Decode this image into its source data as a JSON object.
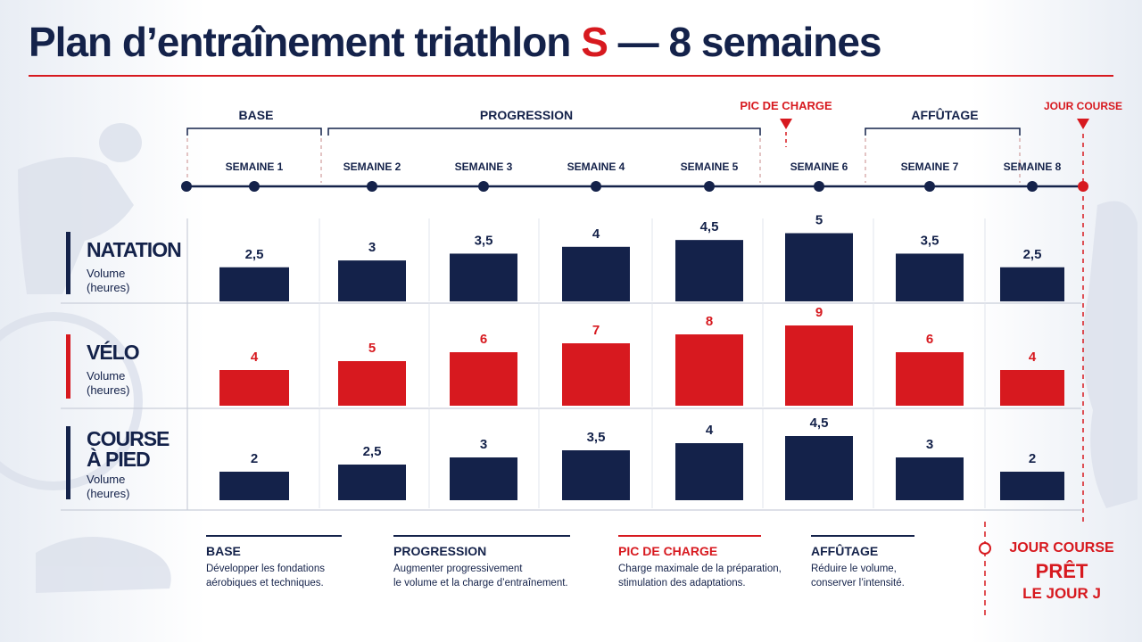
{
  "title": {
    "main": "Plan d’entraînement triathlon",
    "accent": "S",
    "rest": "— 8 semaines"
  },
  "colors": {
    "navy": "#14224a",
    "red": "#d7191f",
    "divider": "#c9ced9"
  },
  "phases": {
    "base": "BASE",
    "progression": "PROGRESSION",
    "peak": "PIC DE CHARGE",
    "taper": "AFFÛTAGE",
    "race": "JOUR COURSE"
  },
  "chart_data": {
    "type": "bar",
    "categories": [
      "SEMAINE 1",
      "SEMAINE 2",
      "SEMAINE 3",
      "SEMAINE 4",
      "SEMAINE 5",
      "SEMAINE 6",
      "SEMAINE 7",
      "SEMAINE 8"
    ],
    "series": [
      {
        "name": "NATATION",
        "unit_label": "Volume (heures)",
        "color": "#14224a",
        "values": [
          2.5,
          3,
          3.5,
          4,
          4.5,
          5,
          3.5,
          2.5
        ],
        "labels": [
          "2,5",
          "3",
          "3,5",
          "4",
          "4,5",
          "5",
          "3,5",
          "2,5"
        ]
      },
      {
        "name": "VÉLO",
        "unit_label": "Volume (heures)",
        "color": "#d7191f",
        "values": [
          4,
          5,
          6,
          7,
          8,
          9,
          6,
          4
        ],
        "labels": [
          "4",
          "5",
          "6",
          "7",
          "8",
          "9",
          "6",
          "4"
        ]
      },
      {
        "name": "COURSE À PIED",
        "unit_label": "Volume (heures)",
        "color": "#14224a",
        "values": [
          2,
          2.5,
          3,
          3.5,
          4,
          4.5,
          3,
          2
        ],
        "labels": [
          "2",
          "2,5",
          "3",
          "3,5",
          "4",
          "4,5",
          "3",
          "2"
        ]
      }
    ]
  },
  "rows": [
    {
      "name_lines": [
        "NATATION"
      ],
      "sub_lines": [
        "Volume",
        "(heures)"
      ]
    },
    {
      "name_lines": [
        "VÉLO"
      ],
      "sub_lines": [
        "Volume",
        "(heures)"
      ]
    },
    {
      "name_lines": [
        "COURSE",
        "À PIED"
      ],
      "sub_lines": [
        "Volume",
        "(heures)"
      ]
    }
  ],
  "legend": [
    {
      "title": "BASE",
      "desc": [
        "Développer les fondations",
        "aérobiques et techniques."
      ]
    },
    {
      "title": "PROGRESSION",
      "desc": [
        "Augmenter progressivement",
        "le volume et la charge d’entraînement."
      ]
    },
    {
      "title": "PIC DE CHARGE",
      "desc": [
        "Charge maximale de la préparation,",
        "stimulation des adaptations."
      ]
    },
    {
      "title": "AFFÛTAGE",
      "desc": [
        "Réduire le volume,",
        "conserver l’intensité."
      ]
    }
  ],
  "race_day": {
    "line1": "JOUR COURSE",
    "line2": "PRÊT",
    "line3": "LE JOUR J"
  }
}
